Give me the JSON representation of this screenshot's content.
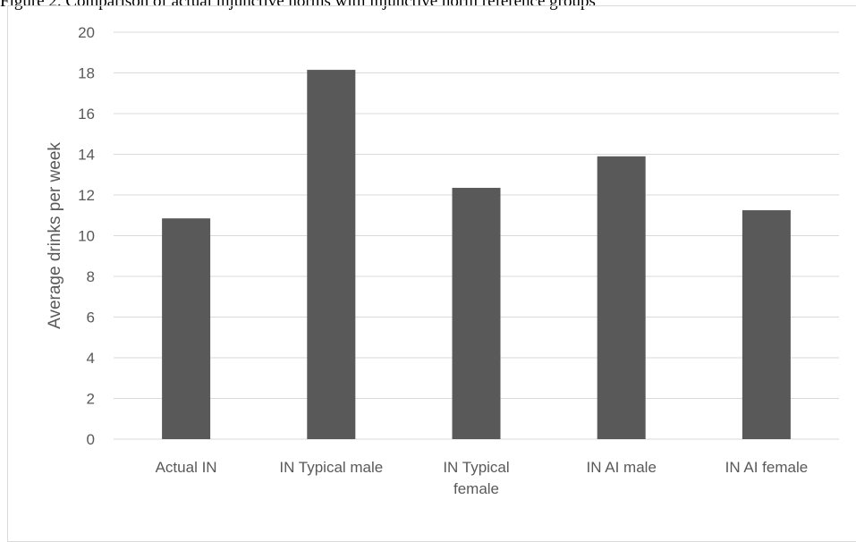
{
  "caption": "Figure 2. Comparison of actual injunctive norms with injunctive norm reference groups",
  "chart_data": {
    "type": "bar",
    "title": "",
    "xlabel": "",
    "ylabel": "Average drinks per week",
    "ylim": [
      0,
      20
    ],
    "yticks": [
      0,
      2,
      4,
      6,
      8,
      10,
      12,
      14,
      16,
      18,
      20
    ],
    "categories": [
      [
        "Actual IN"
      ],
      [
        "IN Typical male"
      ],
      [
        "IN Typical",
        "female"
      ],
      [
        "IN AI male"
      ],
      [
        "IN AI female"
      ]
    ],
    "values": [
      10.85,
      18.15,
      12.35,
      13.9,
      11.25
    ],
    "grid": true,
    "bar_color": "#595959",
    "grid_color": "#d9d9d9"
  }
}
